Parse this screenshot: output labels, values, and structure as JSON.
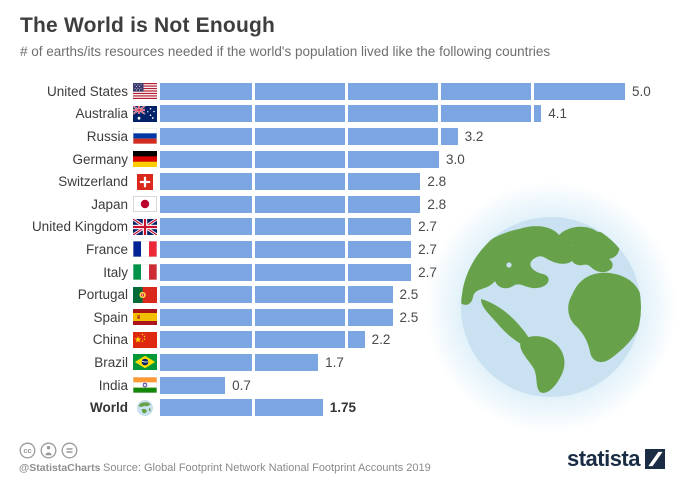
{
  "header": {
    "title": "The World is Not Enough",
    "subtitle": "# of earths/its resources needed if the world's population lived like the following countries"
  },
  "chart_data": {
    "type": "bar",
    "orientation": "horizontal",
    "title": "The World is Not Enough",
    "xlabel": "# of earths",
    "xlim": [
      0,
      5
    ],
    "grid": "white separator lines at each whole earth unit, overlaid on bars",
    "bar_color": "#7BA6E1",
    "legend": "none",
    "categories": [
      "United States",
      "Australia",
      "Russia",
      "Germany",
      "Switzerland",
      "Japan",
      "United Kingdom",
      "France",
      "Italy",
      "Portugal",
      "Spain",
      "China",
      "Brazil",
      "India",
      "World"
    ],
    "values": [
      5.0,
      4.1,
      3.2,
      3.0,
      2.8,
      2.8,
      2.7,
      2.7,
      2.7,
      2.5,
      2.5,
      2.2,
      1.7,
      0.7,
      1.75
    ],
    "display_values": [
      "5.0",
      "4.1",
      "3.2",
      "3.0",
      "2.8",
      "2.8",
      "2.7",
      "2.7",
      "2.7",
      "2.5",
      "2.5",
      "2.2",
      "1.7",
      "0.7",
      "1.75"
    ],
    "flags": [
      "us",
      "au",
      "ru",
      "de",
      "ch",
      "jp",
      "gb",
      "fr",
      "it",
      "pt",
      "es",
      "cn",
      "br",
      "in",
      "world"
    ],
    "emphasized": [
      false,
      false,
      false,
      false,
      false,
      false,
      false,
      false,
      false,
      false,
      false,
      false,
      false,
      false,
      true
    ]
  },
  "illustration": {
    "name": "earth-globe-illustration",
    "ocean_color": "#C9E1F0",
    "land_color": "#67A24B",
    "glow_color": "#B7DDF2"
  },
  "footer": {
    "license_icons": [
      "cc-icon",
      "attribution-icon",
      "equal-icon"
    ],
    "handle": "@StatistaCharts",
    "source": "Source: Global Footprint Network National Footprint Accounts 2019",
    "brand": "statista",
    "brand_color": "#1b2c45"
  }
}
